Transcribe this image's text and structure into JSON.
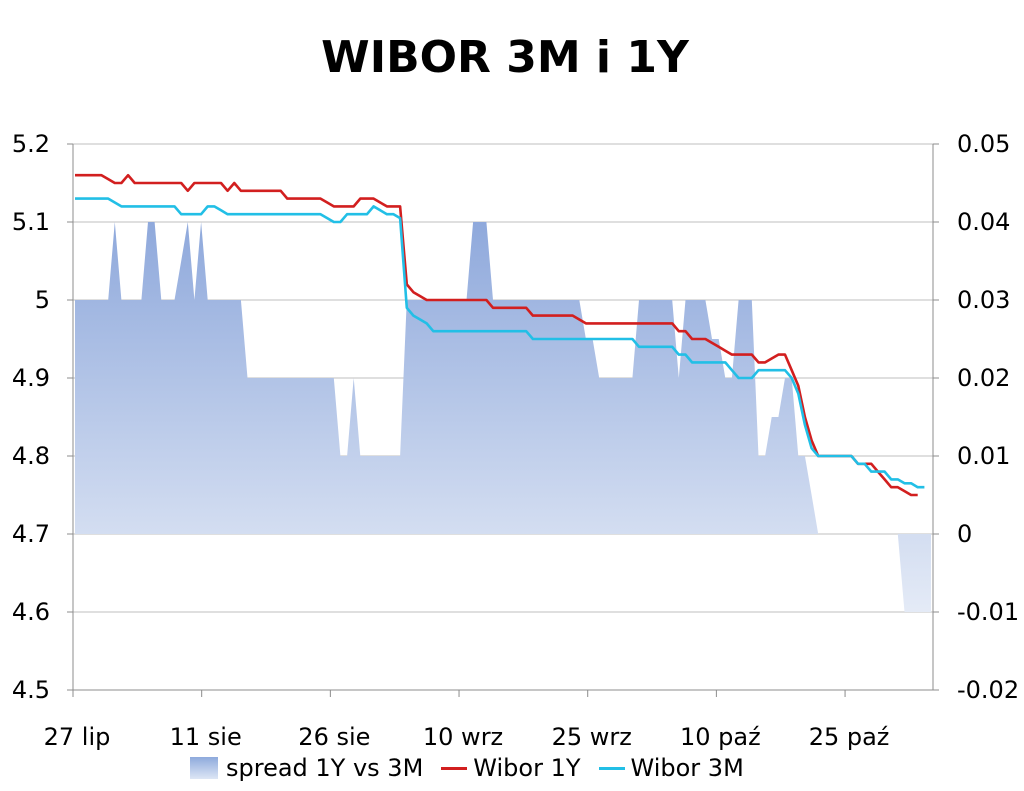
{
  "chart_data": {
    "type": "line",
    "title": "WIBOR 3M i 1Y",
    "x_tick_labels": [
      "27 lip",
      "11 sie",
      "26 sie",
      "10 wrz",
      "25 wrz",
      "10 paź",
      "25 paź"
    ],
    "y_left": {
      "ylim": [
        4.5,
        5.2
      ],
      "ticks": [
        "4.5",
        "4.6",
        "4.7",
        "4.8",
        "4.9",
        "5",
        "5.1",
        "5.2"
      ]
    },
    "y_right": {
      "ylim": [
        -0.02,
        0.05
      ],
      "ticks": [
        "-0.02",
        "-0.01",
        "0",
        "0.01",
        "0.02",
        "0.03",
        "0.04",
        "0.05"
      ]
    },
    "grid": true,
    "legend_position": "bottom",
    "x_start_label": "27 lip",
    "series": [
      {
        "name": "spread 1Y vs 3M",
        "type": "area",
        "axis": "right",
        "color": "#8eaadc",
        "values": [
          0.03,
          0.03,
          0.03,
          0.03,
          0.03,
          0.03,
          0.04,
          0.03,
          0.03,
          0.03,
          0.03,
          0.04,
          0.04,
          0.03,
          0.03,
          0.03,
          0.035,
          0.04,
          0.03,
          0.04,
          0.03,
          0.03,
          0.03,
          0.03,
          0.03,
          0.03,
          0.02,
          0.02,
          0.02,
          0.02,
          0.02,
          0.02,
          0.02,
          0.02,
          0.02,
          0.02,
          0.02,
          0.02,
          0.02,
          0.02,
          0.01,
          0.01,
          0.02,
          0.01,
          0.01,
          0.01,
          0.01,
          0.01,
          0.01,
          0.01,
          0.03,
          0.03,
          0.03,
          0.03,
          0.03,
          0.03,
          0.03,
          0.03,
          0.03,
          0.03,
          0.04,
          0.04,
          0.04,
          0.03,
          0.03,
          0.03,
          0.03,
          0.03,
          0.03,
          0.03,
          0.03,
          0.03,
          0.03,
          0.03,
          0.03,
          0.03,
          0.03,
          0.025,
          0.025,
          0.02,
          0.02,
          0.02,
          0.02,
          0.02,
          0.02,
          0.03,
          0.03,
          0.03,
          0.03,
          0.03,
          0.03,
          0.02,
          0.03,
          0.03,
          0.03,
          0.03,
          0.025,
          0.025,
          0.02,
          0.02,
          0.03,
          0.03,
          0.03,
          0.01,
          0.01,
          0.015,
          0.015,
          0.02,
          0.02,
          0.01,
          0.01,
          0.005,
          0.0,
          0.0,
          0.0,
          0.0,
          0.0,
          0.0,
          0.0,
          0.0,
          0.0,
          0.0,
          0.0,
          0.0,
          0.0,
          -0.01,
          -0.01,
          -0.01,
          -0.01,
          -0.01
        ]
      },
      {
        "name": "Wibor 1Y",
        "type": "line",
        "axis": "left",
        "color": "#d21f1f",
        "values": [
          5.16,
          5.16,
          5.16,
          5.16,
          5.16,
          5.155,
          5.15,
          5.15,
          5.16,
          5.15,
          5.15,
          5.15,
          5.15,
          5.15,
          5.15,
          5.15,
          5.15,
          5.14,
          5.15,
          5.15,
          5.15,
          5.15,
          5.15,
          5.14,
          5.15,
          5.14,
          5.14,
          5.14,
          5.14,
          5.14,
          5.14,
          5.14,
          5.13,
          5.13,
          5.13,
          5.13,
          5.13,
          5.13,
          5.125,
          5.12,
          5.12,
          5.12,
          5.12,
          5.13,
          5.13,
          5.13,
          5.125,
          5.12,
          5.12,
          5.12,
          5.02,
          5.01,
          5.005,
          5.0,
          5.0,
          5.0,
          5.0,
          5.0,
          5.0,
          5.0,
          5.0,
          5.0,
          5.0,
          4.99,
          4.99,
          4.99,
          4.99,
          4.99,
          4.99,
          4.98,
          4.98,
          4.98,
          4.98,
          4.98,
          4.98,
          4.98,
          4.975,
          4.97,
          4.97,
          4.97,
          4.97,
          4.97,
          4.97,
          4.97,
          4.97,
          4.97,
          4.97,
          4.97,
          4.97,
          4.97,
          4.97,
          4.96,
          4.96,
          4.95,
          4.95,
          4.95,
          4.945,
          4.94,
          4.935,
          4.93,
          4.93,
          4.93,
          4.93,
          4.92,
          4.92,
          4.925,
          4.93,
          4.93,
          4.91,
          4.89,
          4.85,
          4.82,
          4.8,
          4.8,
          4.8,
          4.8,
          4.8,
          4.8,
          4.79,
          4.79,
          4.79,
          4.78,
          4.77,
          4.76,
          4.76,
          4.755,
          4.75,
          4.75
        ]
      },
      {
        "name": "Wibor 3M",
        "type": "line",
        "axis": "left",
        "color": "#22bfe6",
        "values": [
          5.13,
          5.13,
          5.13,
          5.13,
          5.13,
          5.13,
          5.125,
          5.12,
          5.12,
          5.12,
          5.12,
          5.12,
          5.12,
          5.12,
          5.12,
          5.12,
          5.11,
          5.11,
          5.11,
          5.11,
          5.12,
          5.12,
          5.115,
          5.11,
          5.11,
          5.11,
          5.11,
          5.11,
          5.11,
          5.11,
          5.11,
          5.11,
          5.11,
          5.11,
          5.11,
          5.11,
          5.11,
          5.11,
          5.105,
          5.1,
          5.1,
          5.11,
          5.11,
          5.11,
          5.11,
          5.12,
          5.115,
          5.11,
          5.11,
          5.105,
          4.99,
          4.98,
          4.975,
          4.97,
          4.96,
          4.96,
          4.96,
          4.96,
          4.96,
          4.96,
          4.96,
          4.96,
          4.96,
          4.96,
          4.96,
          4.96,
          4.96,
          4.96,
          4.96,
          4.95,
          4.95,
          4.95,
          4.95,
          4.95,
          4.95,
          4.95,
          4.95,
          4.95,
          4.95,
          4.95,
          4.95,
          4.95,
          4.95,
          4.95,
          4.95,
          4.94,
          4.94,
          4.94,
          4.94,
          4.94,
          4.94,
          4.93,
          4.93,
          4.92,
          4.92,
          4.92,
          4.92,
          4.92,
          4.92,
          4.91,
          4.9,
          4.9,
          4.9,
          4.91,
          4.91,
          4.91,
          4.91,
          4.91,
          4.9,
          4.88,
          4.84,
          4.81,
          4.8,
          4.8,
          4.8,
          4.8,
          4.8,
          4.8,
          4.79,
          4.79,
          4.78,
          4.78,
          4.78,
          4.77,
          4.77,
          4.765,
          4.765,
          4.76,
          4.76
        ]
      }
    ]
  }
}
